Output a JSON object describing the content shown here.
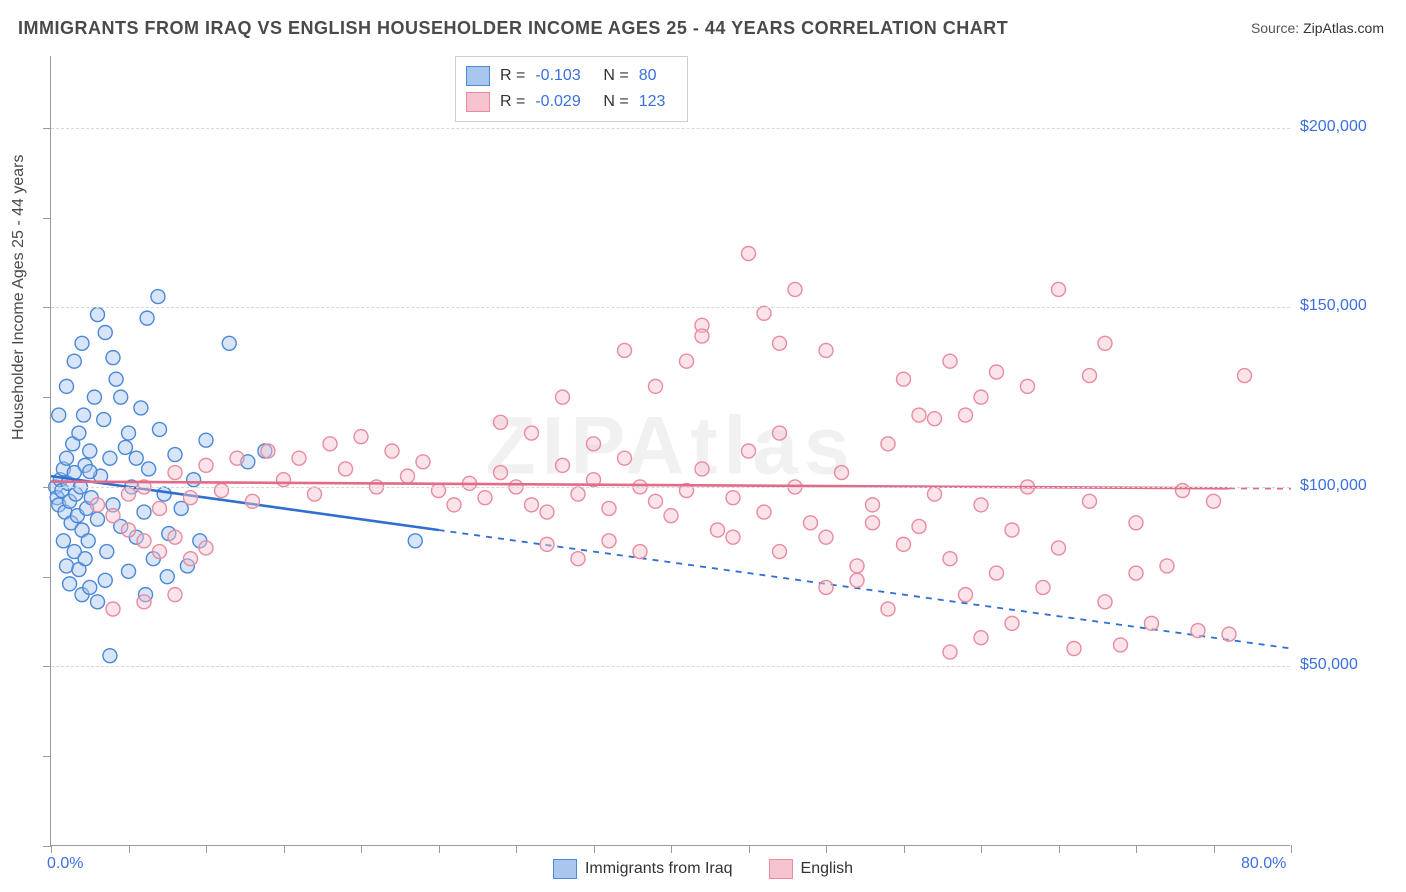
{
  "title": "IMMIGRANTS FROM IRAQ VS ENGLISH HOUSEHOLDER INCOME AGES 25 - 44 YEARS CORRELATION CHART",
  "source_label": "Source:",
  "source_value": "ZipAtlas.com",
  "watermark": "ZIPAtlas",
  "yaxis_title": "Householder Income Ages 25 - 44 years",
  "colors": {
    "blue_fill": "#a9c6ef",
    "blue_stroke": "#4a88d8",
    "blue_line": "#2f6fd0",
    "pink_fill": "#f6c4cf",
    "pink_stroke": "#e98ba0",
    "pink_line": "#e26b88",
    "grid": "#d7d7d7",
    "axis": "#9a9a9a",
    "tick_text": "#3b6fe0",
    "title_text": "#4a4a4a",
    "bg": "#ffffff"
  },
  "chart": {
    "type": "scatter",
    "xlim": [
      0,
      80
    ],
    "ylim": [
      0,
      220000
    ],
    "xticks_minor": [
      0,
      5,
      10,
      15,
      20,
      25,
      30,
      35,
      40,
      45,
      50,
      55,
      60,
      65,
      70,
      75,
      80
    ],
    "yticks_minor": [
      0,
      25000,
      50000,
      75000,
      100000,
      125000,
      150000,
      175000,
      200000
    ],
    "ytick_labels": [
      {
        "v": 50000,
        "label": "$50,000"
      },
      {
        "v": 100000,
        "label": "$100,000"
      },
      {
        "v": 150000,
        "label": "$150,000"
      },
      {
        "v": 200000,
        "label": "$200,000"
      }
    ],
    "xlabel_left": {
      "v": 0,
      "label": "0.0%"
    },
    "xlabel_right": {
      "v": 80,
      "label": "80.0%"
    },
    "marker_radius": 7,
    "marker_stroke_width": 1.4,
    "marker_fill_opacity": 0.45,
    "line_width": 2.6,
    "line_dash": "6 6"
  },
  "series": [
    {
      "name": "Immigrants from Iraq",
      "key": "blue",
      "R": "-0.103",
      "N": "80",
      "trend": {
        "x1": 0,
        "y1": 103000,
        "x2": 80,
        "y2": 55000,
        "solid_until_x": 25
      },
      "points": [
        [
          0.3,
          100000
        ],
        [
          0.4,
          97000
        ],
        [
          0.5,
          95000
        ],
        [
          0.6,
          102000
        ],
        [
          0.7,
          99000
        ],
        [
          0.8,
          105000
        ],
        [
          0.9,
          93000
        ],
        [
          1.0,
          108000
        ],
        [
          1.1,
          101000
        ],
        [
          1.2,
          96000
        ],
        [
          1.3,
          90000
        ],
        [
          1.4,
          112000
        ],
        [
          1.5,
          104000
        ],
        [
          1.6,
          98000
        ],
        [
          1.7,
          92000
        ],
        [
          1.8,
          115000
        ],
        [
          1.9,
          100000
        ],
        [
          2.0,
          88000
        ],
        [
          2.1,
          120000
        ],
        [
          2.2,
          106000
        ],
        [
          2.3,
          94000
        ],
        [
          2.4,
          85000
        ],
        [
          2.5,
          110000
        ],
        [
          2.6,
          97000
        ],
        [
          2.8,
          125000
        ],
        [
          3.0,
          91000
        ],
        [
          3.2,
          103000
        ],
        [
          3.4,
          118762
        ],
        [
          3.6,
          82000
        ],
        [
          3.8,
          108000
        ],
        [
          4.0,
          95000
        ],
        [
          4.2,
          130000
        ],
        [
          4.5,
          89000
        ],
        [
          4.8,
          111000
        ],
        [
          5.0,
          76484
        ],
        [
          5.2,
          100000
        ],
        [
          5.5,
          86000
        ],
        [
          5.8,
          122000
        ],
        [
          6.0,
          93000
        ],
        [
          6.3,
          105000
        ],
        [
          6.6,
          80000
        ],
        [
          7.0,
          116000
        ],
        [
          7.3,
          98000
        ],
        [
          7.6,
          87000
        ],
        [
          8.0,
          109000
        ],
        [
          8.4,
          94000
        ],
        [
          8.8,
          78000
        ],
        [
          9.2,
          102000
        ],
        [
          9.6,
          85000
        ],
        [
          10.0,
          113000
        ],
        [
          2.0,
          70000
        ],
        [
          2.5,
          72000
        ],
        [
          3.0,
          68000
        ],
        [
          3.5,
          74000
        ],
        [
          1.0,
          78000
        ],
        [
          1.5,
          82000
        ],
        [
          0.8,
          85000
        ],
        [
          1.2,
          73000
        ],
        [
          1.8,
          77000
        ],
        [
          2.2,
          80000
        ],
        [
          0.5,
          120000
        ],
        [
          1.0,
          128000
        ],
        [
          1.5,
          135000
        ],
        [
          2.0,
          140000
        ],
        [
          2.5,
          104264
        ],
        [
          3.0,
          148000
        ],
        [
          3.5,
          143000
        ],
        [
          4.0,
          136000
        ],
        [
          4.5,
          125000
        ],
        [
          5.0,
          115000
        ],
        [
          5.5,
          108000
        ],
        [
          6.9,
          153000
        ],
        [
          6.2,
          147000
        ],
        [
          11.5,
          140000
        ],
        [
          12.7,
          107000
        ],
        [
          3.8,
          53000
        ],
        [
          6.1,
          70000
        ],
        [
          7.5,
          75000
        ],
        [
          23.5,
          85000
        ],
        [
          13.8,
          110000
        ]
      ]
    },
    {
      "name": "English",
      "key": "pink",
      "R": "-0.029",
      "N": "123",
      "trend": {
        "x1": 0,
        "y1": 101500,
        "x2": 80,
        "y2": 99500,
        "solid_until_x": 76
      },
      "points": [
        [
          3,
          95000
        ],
        [
          4,
          92000
        ],
        [
          5,
          98000
        ],
        [
          6,
          100000
        ],
        [
          7,
          94000
        ],
        [
          8,
          104000
        ],
        [
          9,
          97000
        ],
        [
          10,
          106000
        ],
        [
          11,
          99000
        ],
        [
          12,
          108000
        ],
        [
          13,
          96000
        ],
        [
          14,
          110000
        ],
        [
          15,
          102000
        ],
        [
          16,
          108000
        ],
        [
          17,
          98000
        ],
        [
          18,
          112000
        ],
        [
          19,
          105000
        ],
        [
          20,
          114000
        ],
        [
          21,
          100000
        ],
        [
          22,
          110000
        ],
        [
          23,
          103000
        ],
        [
          24,
          107000
        ],
        [
          25,
          99000
        ],
        [
          26,
          95000
        ],
        [
          27,
          101000
        ],
        [
          28,
          97000
        ],
        [
          29,
          104000
        ],
        [
          30,
          100000
        ],
        [
          31,
          95000
        ],
        [
          32,
          93000
        ],
        [
          33,
          106000
        ],
        [
          34,
          98000
        ],
        [
          35,
          102000
        ],
        [
          36,
          94000
        ],
        [
          37,
          108000
        ],
        [
          38,
          100000
        ],
        [
          39,
          96000
        ],
        [
          40,
          92000
        ],
        [
          41,
          99000
        ],
        [
          42,
          105000
        ],
        [
          43,
          88000
        ],
        [
          44,
          97000
        ],
        [
          45,
          110000
        ],
        [
          46,
          93000
        ],
        [
          47,
          82000
        ],
        [
          48,
          100000
        ],
        [
          49,
          90000
        ],
        [
          50,
          86000
        ],
        [
          51,
          104000
        ],
        [
          52,
          78000
        ],
        [
          53,
          95000
        ],
        [
          54,
          112000
        ],
        [
          55,
          84000
        ],
        [
          56,
          89000
        ],
        [
          57,
          98000
        ],
        [
          58,
          80000
        ],
        [
          59,
          70000
        ],
        [
          60,
          95000
        ],
        [
          61,
          76000
        ],
        [
          62,
          88000
        ],
        [
          63,
          100000
        ],
        [
          64,
          72000
        ],
        [
          65,
          83000
        ],
        [
          66,
          55000
        ],
        [
          67,
          96000
        ],
        [
          68,
          68000
        ],
        [
          69,
          56000
        ],
        [
          70,
          90000
        ],
        [
          71,
          62000
        ],
        [
          72,
          78000
        ],
        [
          73,
          99000
        ],
        [
          74,
          60000
        ],
        [
          75,
          96000
        ],
        [
          76,
          59000
        ],
        [
          77,
          131000
        ],
        [
          5,
          88000
        ],
        [
          6,
          85000
        ],
        [
          7,
          82000
        ],
        [
          8,
          86000
        ],
        [
          9,
          80000
        ],
        [
          10,
          83000
        ],
        [
          4,
          66000
        ],
        [
          6,
          68000
        ],
        [
          8,
          70000
        ],
        [
          29,
          118000
        ],
        [
          31,
          115000
        ],
        [
          33,
          125000
        ],
        [
          35,
          112000
        ],
        [
          37,
          138000
        ],
        [
          39,
          128000
        ],
        [
          41,
          135000
        ],
        [
          42,
          145000
        ],
        [
          45,
          165000
        ],
        [
          47,
          140000
        ],
        [
          50,
          138000
        ],
        [
          42,
          142000
        ],
        [
          44,
          86000
        ],
        [
          46,
          148353
        ],
        [
          55,
          130000
        ],
        [
          57,
          119000
        ],
        [
          59,
          120000
        ],
        [
          58,
          135000
        ],
        [
          61,
          132000
        ],
        [
          63,
          128000
        ],
        [
          65,
          155000
        ],
        [
          67,
          131000
        ],
        [
          50,
          72000
        ],
        [
          52,
          74000
        ],
        [
          54,
          66000
        ],
        [
          58,
          54000
        ],
        [
          60,
          58000
        ],
        [
          62,
          62000
        ],
        [
          56,
          120000
        ],
        [
          60,
          125000
        ],
        [
          48,
          155000
        ],
        [
          68,
          140000
        ],
        [
          70,
          76000
        ],
        [
          53,
          90000
        ],
        [
          38,
          82000
        ],
        [
          36,
          85000
        ],
        [
          34,
          80000
        ],
        [
          32,
          84000
        ],
        [
          47,
          115000
        ]
      ]
    }
  ],
  "legend_top": {
    "R_label": "R =",
    "N_label": "N ="
  },
  "legend_bottom": [
    {
      "key": "blue",
      "label": "Immigrants from Iraq"
    },
    {
      "key": "pink",
      "label": "English"
    }
  ]
}
